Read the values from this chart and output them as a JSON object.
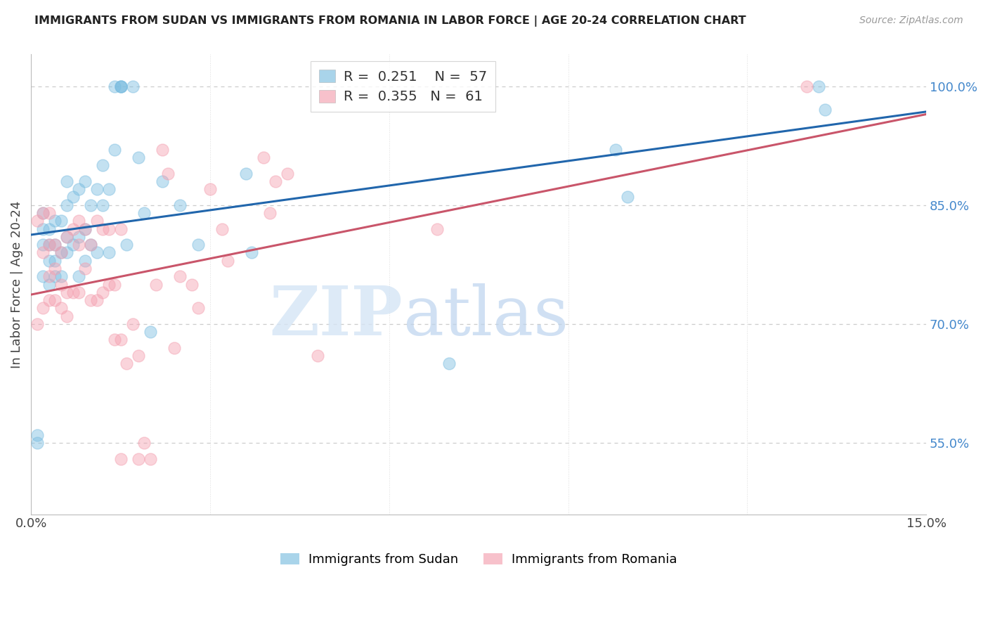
{
  "title": "IMMIGRANTS FROM SUDAN VS IMMIGRANTS FROM ROMANIA IN LABOR FORCE | AGE 20-24 CORRELATION CHART",
  "source": "Source: ZipAtlas.com",
  "ylabel": "In Labor Force | Age 20-24",
  "xlim": [
    0.0,
    0.15
  ],
  "ylim": [
    0.46,
    1.04
  ],
  "x_ticks": [
    0.0,
    0.03,
    0.06,
    0.09,
    0.12,
    0.15
  ],
  "y_ticks_right": [
    0.55,
    0.7,
    0.85,
    1.0
  ],
  "y_tick_labels_right": [
    "55.0%",
    "70.0%",
    "85.0%",
    "100.0%"
  ],
  "sudan_color": "#7bbde0",
  "romania_color": "#f4a0b0",
  "sudan_label": "Immigrants from Sudan",
  "romania_label": "Immigrants from Romania",
  "sudan_R": "0.251",
  "sudan_N": "57",
  "romania_R": "0.355",
  "romania_N": "61",
  "sudan_line_color": "#2166ac",
  "romania_line_color": "#c9556a",
  "sudan_x": [
    0.001,
    0.001,
    0.002,
    0.002,
    0.002,
    0.002,
    0.003,
    0.003,
    0.003,
    0.003,
    0.004,
    0.004,
    0.004,
    0.004,
    0.005,
    0.005,
    0.005,
    0.006,
    0.006,
    0.006,
    0.006,
    0.007,
    0.007,
    0.008,
    0.008,
    0.008,
    0.009,
    0.009,
    0.009,
    0.01,
    0.01,
    0.011,
    0.011,
    0.012,
    0.012,
    0.013,
    0.013,
    0.014,
    0.014,
    0.015,
    0.015,
    0.015,
    0.016,
    0.017,
    0.018,
    0.019,
    0.02,
    0.022,
    0.025,
    0.028,
    0.036,
    0.037,
    0.07,
    0.098,
    0.1,
    0.132,
    0.133
  ],
  "sudan_y": [
    0.55,
    0.56,
    0.76,
    0.8,
    0.82,
    0.84,
    0.75,
    0.78,
    0.8,
    0.82,
    0.76,
    0.78,
    0.8,
    0.83,
    0.76,
    0.79,
    0.83,
    0.79,
    0.81,
    0.85,
    0.88,
    0.8,
    0.86,
    0.76,
    0.81,
    0.87,
    0.78,
    0.82,
    0.88,
    0.8,
    0.85,
    0.79,
    0.87,
    0.85,
    0.9,
    0.79,
    0.87,
    0.92,
    1.0,
    1.0,
    1.0,
    1.0,
    0.8,
    1.0,
    0.91,
    0.84,
    0.69,
    0.88,
    0.85,
    0.8,
    0.89,
    0.79,
    0.65,
    0.92,
    0.86,
    1.0,
    0.97
  ],
  "romania_x": [
    0.001,
    0.001,
    0.002,
    0.002,
    0.002,
    0.003,
    0.003,
    0.003,
    0.003,
    0.004,
    0.004,
    0.004,
    0.005,
    0.005,
    0.005,
    0.006,
    0.006,
    0.006,
    0.007,
    0.007,
    0.008,
    0.008,
    0.008,
    0.009,
    0.009,
    0.01,
    0.01,
    0.011,
    0.011,
    0.012,
    0.012,
    0.013,
    0.013,
    0.014,
    0.014,
    0.015,
    0.015,
    0.015,
    0.016,
    0.017,
    0.018,
    0.018,
    0.019,
    0.02,
    0.021,
    0.022,
    0.023,
    0.024,
    0.025,
    0.027,
    0.028,
    0.03,
    0.032,
    0.033,
    0.039,
    0.04,
    0.041,
    0.043,
    0.048,
    0.068,
    0.13
  ],
  "romania_y": [
    0.7,
    0.83,
    0.72,
    0.79,
    0.84,
    0.73,
    0.76,
    0.8,
    0.84,
    0.73,
    0.77,
    0.8,
    0.72,
    0.75,
    0.79,
    0.71,
    0.74,
    0.81,
    0.74,
    0.82,
    0.74,
    0.8,
    0.83,
    0.77,
    0.82,
    0.73,
    0.8,
    0.73,
    0.83,
    0.74,
    0.82,
    0.75,
    0.82,
    0.68,
    0.75,
    0.53,
    0.68,
    0.82,
    0.65,
    0.7,
    0.53,
    0.66,
    0.55,
    0.53,
    0.75,
    0.92,
    0.89,
    0.67,
    0.76,
    0.75,
    0.72,
    0.87,
    0.82,
    0.78,
    0.91,
    0.84,
    0.88,
    0.89,
    0.66,
    0.82,
    1.0
  ],
  "background_color": "#ffffff",
  "grid_color": "#cccccc"
}
